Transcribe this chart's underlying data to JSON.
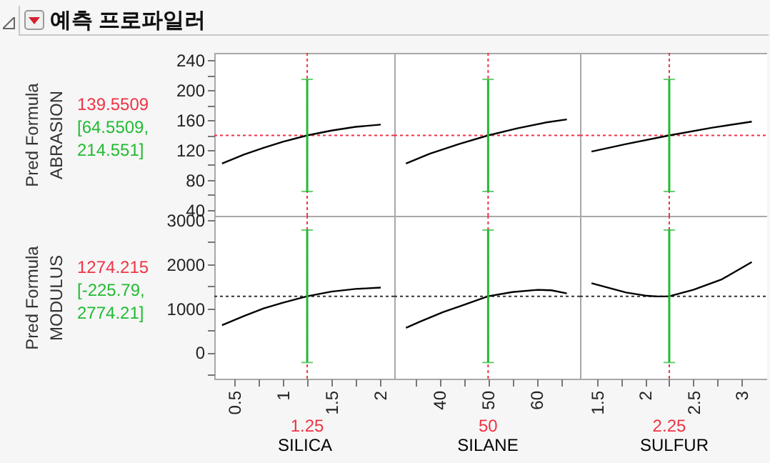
{
  "chart_data": [
    {
      "type": "line",
      "title": "예측 프로파일러",
      "ylabel": "Pred Formula\nABRASION",
      "annotations": [
        "139.5509",
        "[64.5509, 214.551]"
      ],
      "xlim": [
        0.29,
        2.15
      ],
      "ylim": [
        32,
        250
      ],
      "yticks": [
        40,
        {
          "value": 60,
          "label": null
        },
        80,
        {
          "value": 100,
          "label": null
        },
        120,
        {
          "value": 140,
          "label": null
        },
        160,
        {
          "value": 180,
          "label": null
        },
        200,
        {
          "value": 220,
          "label": null
        },
        240
      ],
      "tick_labels": "y",
      "series": [
        {
          "color": "#000000",
          "x": [
            0.37,
            0.6,
            0.8,
            1.0,
            1.25,
            1.5,
            1.75,
            2.01
          ],
          "values": [
            102,
            114,
            123,
            131,
            139.5509,
            146,
            151,
            154
          ],
          "errors": [
            null,
            null,
            null,
            null,
            [
              64.5509,
              214.551
            ],
            null,
            null,
            null
          ]
        }
      ],
      "ref_lines": [
        {
          "axis": "x",
          "value": 1.25,
          "color": "#ee3344",
          "line_style": "dotted"
        },
        {
          "axis": "y",
          "value": 139.5509,
          "color": "#ee3344",
          "line_style": "dotted"
        }
      ]
    },
    {
      "type": "line",
      "xlim": [
        30.7,
        68.9
      ],
      "ylim": [
        32,
        250
      ],
      "tick_labels": false,
      "series": [
        {
          "color": "#000000",
          "x": [
            33.1,
            38,
            44,
            50,
            56,
            62,
            66.2
          ],
          "values": [
            102,
            115,
            128,
            139.5509,
            149,
            157,
            161
          ],
          "errors": [
            null,
            null,
            null,
            [
              64.5509,
              214.551
            ],
            null,
            null,
            null
          ]
        }
      ],
      "ref_lines": [
        {
          "axis": "x",
          "value": 50,
          "color": "#ee3344",
          "line_style": "dotted"
        },
        {
          "axis": "y",
          "value": 139.5509,
          "color": "#ee3344",
          "line_style": "dotted"
        }
      ]
    },
    {
      "type": "line",
      "xlim": [
        1.32,
        3.27
      ],
      "ylim": [
        32,
        250
      ],
      "tick_labels": false,
      "series": [
        {
          "color": "#000000",
          "x": [
            1.44,
            1.8,
            2.25,
            2.7,
            3.11
          ],
          "values": [
            118,
            128,
            139.5509,
            150,
            158
          ],
          "errors": [
            null,
            null,
            [
              64.5509,
              214.551
            ],
            null,
            null
          ]
        }
      ],
      "ref_lines": [
        {
          "axis": "x",
          "value": 2.25,
          "color": "#ee3344",
          "line_style": "dotted"
        },
        {
          "axis": "y",
          "value": 139.5509,
          "color": "#ee3344",
          "line_style": "dotted"
        }
      ]
    },
    {
      "type": "line",
      "ylabel": "Pred Formula\nMODULUS",
      "xlabel": "SILICA",
      "annotations": [
        "1274.215",
        "[-225.79, 2774.21]"
      ],
      "xlim": [
        0.29,
        2.15
      ],
      "ylim": [
        -592,
        3097
      ],
      "xticks": [
        0.5,
        {
          "value": 0.75,
          "label": null
        },
        1,
        {
          "value": 1.25,
          "label": null
        },
        1.5,
        {
          "value": 1.75,
          "label": null
        },
        2
      ],
      "yticks": [
        {
          "value": -500,
          "label": null
        },
        0,
        {
          "value": 500,
          "label": null
        },
        1000,
        {
          "value": 1500,
          "label": null
        },
        2000,
        {
          "value": 2500,
          "label": null
        },
        3000
      ],
      "series": [
        {
          "color": "#000000",
          "x": [
            0.37,
            0.6,
            0.8,
            1.0,
            1.25,
            1.5,
            1.75,
            2.01
          ],
          "values": [
            620,
            830,
            1000,
            1130,
            1274.215,
            1380,
            1440,
            1470
          ],
          "errors": [
            null,
            null,
            null,
            null,
            [
              -225.79,
              2774.21
            ],
            null,
            null,
            null
          ]
        }
      ],
      "ref_lines": [
        {
          "axis": "x",
          "value": 1.25,
          "label": "1.25",
          "color": "#ee3344",
          "line_style": "dotted"
        },
        {
          "axis": "y",
          "value": 1274.215,
          "color": "#333333",
          "line_style": "dotted"
        }
      ]
    },
    {
      "type": "line",
      "xlabel": "SILANE",
      "xlim": [
        30.7,
        68.9
      ],
      "ylim": [
        -592,
        3097
      ],
      "xticks": [
        {
          "value": 35,
          "label": null
        },
        40,
        {
          "value": 45,
          "label": null
        },
        50,
        {
          "value": 55,
          "label": null
        },
        60,
        {
          "value": 65,
          "label": null
        }
      ],
      "tick_labels": "x",
      "series": [
        {
          "color": "#000000",
          "x": [
            33.1,
            36,
            40.8,
            44,
            50,
            55,
            60.2,
            63,
            66.2
          ],
          "values": [
            560,
            700,
            920,
            1040,
            1274.215,
            1370,
            1420,
            1410,
            1340
          ],
          "errors": [
            null,
            null,
            null,
            null,
            [
              -225.79,
              2774.21
            ],
            null,
            null,
            null,
            null
          ]
        }
      ],
      "ref_lines": [
        {
          "axis": "x",
          "value": 50,
          "label": "50",
          "color": "#ee3344",
          "line_style": "dotted"
        },
        {
          "axis": "y",
          "value": 1274.215,
          "color": "#333333",
          "line_style": "dotted"
        }
      ]
    },
    {
      "type": "line",
      "xlabel": "SULFUR",
      "xlim": [
        1.32,
        3.27
      ],
      "ylim": [
        -592,
        3097
      ],
      "xticks": [
        1.5,
        {
          "value": 1.75,
          "label": null
        },
        2,
        {
          "value": 2.25,
          "label": null
        },
        2.5,
        {
          "value": 2.75,
          "label": null
        },
        3
      ],
      "tick_labels": "x",
      "series": [
        {
          "color": "#000000",
          "x": [
            1.44,
            1.8,
            2.0,
            2.12,
            2.25,
            2.5,
            2.8,
            3.11
          ],
          "values": [
            1570,
            1360,
            1290,
            1270,
            1274.215,
            1420,
            1660,
            2050
          ],
          "errors": [
            null,
            null,
            null,
            null,
            [
              -225.79,
              2774.21
            ],
            null,
            null,
            null
          ]
        }
      ],
      "ref_lines": [
        {
          "axis": "x",
          "value": 2.25,
          "label": "2.25",
          "color": "#ee3344",
          "line_style": "dotted"
        },
        {
          "axis": "y",
          "value": 1274.215,
          "color": "#333333",
          "line_style": "dotted"
        }
      ]
    }
  ]
}
